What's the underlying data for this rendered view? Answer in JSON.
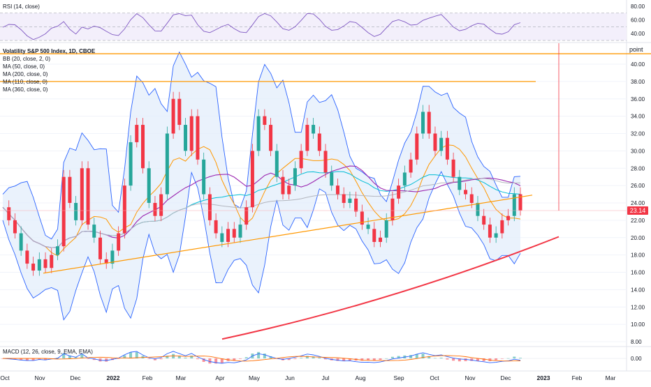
{
  "colors": {
    "up": "#26a69a",
    "down": "#f23645",
    "bb": "#2962ff",
    "bb_fill": "#e3eefb",
    "ma50": "#ff9800",
    "ma200": "#00bcd4",
    "ma110": "#9c27b0",
    "ma360": "#b2b5be",
    "trend_red": "#f23645",
    "hline": "#ff9800",
    "rsi": "#7e57c2",
    "macd": "#2962ff",
    "signal": "#ff6d00"
  },
  "rsi_panel": {
    "label": "RSI (14, close)",
    "ticks": [
      "80.00",
      "60.00",
      "40.00"
    ]
  },
  "main_panel": {
    "legend": [
      "Volatility S&P 500 Index, 1D, CBOE",
      "BB (20, close, 2, 0)",
      "MA (50, close, 0)",
      "MA (200, close, 0)",
      "MA (110, close, 0)",
      "MA (360, close, 0)"
    ],
    "price_label": "23.14",
    "point_label": "point"
  },
  "macd_panel": {
    "label": "MACD (12, 26, close, 9, EMA, EMA)",
    "ticks": [
      "0.00"
    ]
  },
  "x_axis": {
    "labels": [
      "Oct",
      "Nov",
      "Dec",
      "2022",
      "Feb",
      "Mar",
      "Apr",
      "May",
      "Jun",
      "Jul",
      "Aug",
      "Sep",
      "Oct",
      "Nov",
      "Dec",
      "2023",
      "Feb",
      "Mar"
    ]
  },
  "chart_data": {
    "type": "line",
    "y_axis_ticks": [
      "40.00",
      "38.00",
      "36.00",
      "34.00",
      "32.00",
      "30.00",
      "28.00",
      "26.00",
      "24.00",
      "22.00",
      "20.00",
      "18.00",
      "16.00",
      "14.00",
      "12.00",
      "10.00",
      "8.00"
    ],
    "ylim": [
      8,
      42
    ],
    "last_price": 23.14,
    "horizontal_levels": [
      41.2,
      38.0
    ],
    "series": [
      {
        "values": [
          23.5,
          22.0,
          20.5,
          18.5,
          17.0,
          16.2,
          17.5,
          16.5,
          18.0,
          19.0,
          27.0,
          24.0,
          22.0,
          28.0,
          21.5,
          20.0,
          17.5,
          17.0,
          18.5,
          20.5,
          26.0,
          31.0,
          33.0,
          28.0,
          24.0,
          22.5,
          25.0,
          32.0,
          36.0,
          33.0,
          30.0,
          34.0,
          29.0,
          25.0,
          22.0,
          20.5,
          19.5,
          21.0,
          20.0,
          21.5,
          23.5,
          30.0,
          34.0,
          33.0,
          30.0,
          27.0,
          25.0,
          26.0,
          28.0,
          30.0,
          33.0,
          32.0,
          30.0,
          27.5,
          26.0,
          25.0,
          24.0,
          24.5,
          23.0,
          21.5,
          21.0,
          19.5,
          20.0,
          22.0,
          24.5,
          26.0,
          27.5,
          29.0,
          32.0,
          34.5,
          32.0,
          30.0,
          31.5,
          29.0,
          27.0,
          25.5,
          25.0,
          24.0,
          22.5,
          21.5,
          20.0,
          20.5,
          22.0,
          22.5,
          25.0,
          23.14
        ]
      }
    ]
  }
}
